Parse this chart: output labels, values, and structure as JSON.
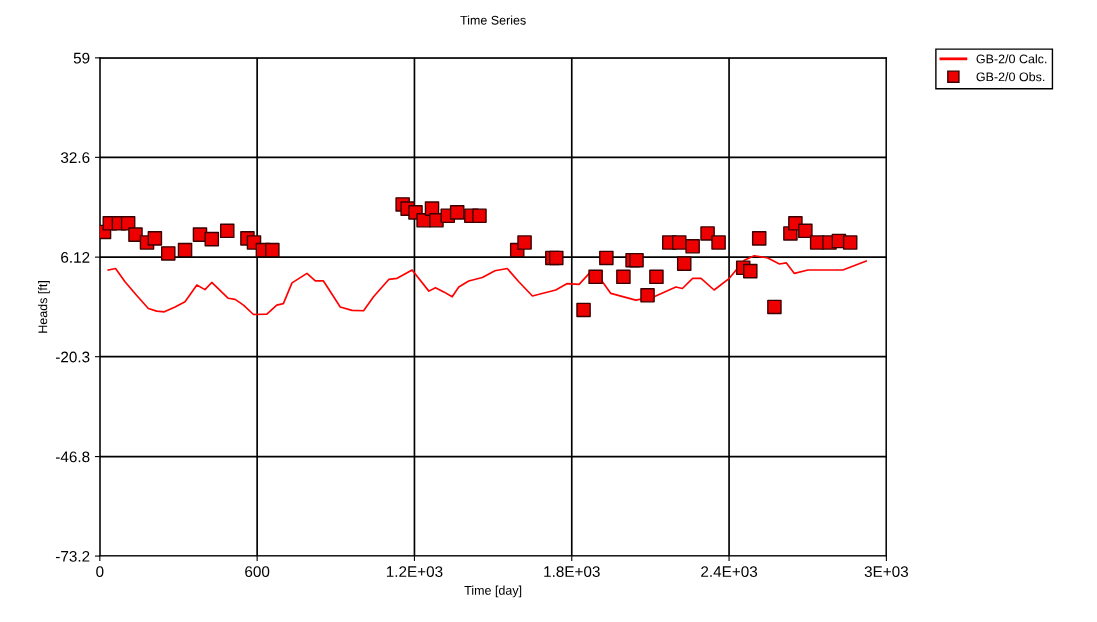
{
  "chart_data": {
    "type": "line",
    "title": "Time Series",
    "xlabel": "Time [day]",
    "ylabel": "Heads [ft]",
    "xlim": [
      0,
      3000
    ],
    "xticks": [
      0,
      600,
      {
        "value": 1200,
        "label": "1.2E+03"
      },
      {
        "value": 1800,
        "label": "1.8E+03"
      },
      {
        "value": 2400,
        "label": "2.4E+03"
      },
      {
        "value": 3000,
        "label": "3E+03"
      }
    ],
    "ylim": [
      -73.2,
      59
    ],
    "yticks": [
      -73.2,
      -46.8,
      -20.3,
      6.12,
      32.6,
      59
    ],
    "grid": true,
    "legend": "top right",
    "series": [
      {
        "name": "GB-2/0 Calc.",
        "color": "#ff0000",
        "marker": "none",
        "line_style": "solid",
        "x": [
          32,
          60,
          96,
          140,
          185,
          217,
          246,
          287,
          325,
          370,
          401,
          427,
          490,
          516,
          548,
          586,
          637,
          675,
          700,
          733,
          790,
          822,
          853,
          917,
          962,
          1006,
          1044,
          1102,
          1134,
          1191,
          1255,
          1280,
          1312,
          1344,
          1369,
          1407,
          1459,
          1507,
          1554,
          1598,
          1650,
          1739,
          1783,
          1828,
          1872,
          1917,
          1949,
          2044,
          2114,
          2197,
          2222,
          2261,
          2293,
          2343,
          2401,
          2458,
          2496,
          2548,
          2592,
          2618,
          2649,
          2701,
          2834,
          2923
        ],
        "values": [
          2.7,
          3.1,
          -0.4,
          -4.0,
          -7.5,
          -8.2,
          -8.4,
          -7.1,
          -5.7,
          -1.3,
          -2.5,
          -0.6,
          -4.8,
          -5.1,
          -6.6,
          -9.1,
          -9.0,
          -6.6,
          -6.2,
          -0.7,
          1.8,
          -0.2,
          -0.2,
          -7.1,
          -8.0,
          -8.1,
          -4.4,
          0.2,
          0.5,
          2.7,
          -2.9,
          -2.0,
          -3.1,
          -4.4,
          -1.8,
          -0.2,
          0.7,
          2.5,
          3.1,
          -0.4,
          -4.2,
          -2.6,
          -0.9,
          -1.1,
          2.2,
          -0.4,
          -3.5,
          -5.3,
          -4.4,
          -1.8,
          -2.2,
          0.5,
          0.5,
          -2.6,
          0.5,
          5.3,
          6.5,
          5.9,
          4.3,
          4.6,
          1.8,
          2.7,
          2.7,
          5.1
        ]
      },
      {
        "name": "GB-2/0 Obs.",
        "type": "scatter",
        "color": "#ee0000",
        "marker": "square",
        "x": [
          16,
          38,
          73,
          108,
          136,
          180,
          210,
          261,
          325,
          382,
          427,
          486,
          563,
          588,
          622,
          658,
          1155,
          1174,
          1204,
          1235,
          1267,
          1284,
          1327,
          1363,
          1417,
          1448,
          1592,
          1620,
          1726,
          1741,
          1845,
          1891,
          1932,
          1997,
          2032,
          2047,
          2089,
          2123,
          2172,
          2210,
          2229,
          2261,
          2318,
          2360,
          2454,
          2481,
          2515,
          2573,
          2634,
          2653,
          2691,
          2736,
          2783,
          2819,
          2862
        ],
        "values": [
          12.8,
          15.1,
          15.1,
          15.1,
          12.1,
          10.0,
          11.1,
          7.1,
          8.0,
          12.1,
          10.9,
          13.1,
          11.1,
          10.0,
          8.0,
          8.0,
          20.1,
          19.0,
          18.0,
          15.9,
          19.0,
          15.9,
          17.1,
          18.0,
          17.1,
          17.1,
          8.0,
          10.0,
          5.9,
          5.9,
          -7.9,
          0.9,
          5.9,
          0.9,
          5.3,
          5.3,
          -4.0,
          0.9,
          10.0,
          10.0,
          4.4,
          9.0,
          12.4,
          10.0,
          3.3,
          2.4,
          11.1,
          -7.1,
          12.4,
          15.1,
          13.1,
          10.0,
          10.0,
          10.4,
          10.0
        ]
      }
    ]
  }
}
